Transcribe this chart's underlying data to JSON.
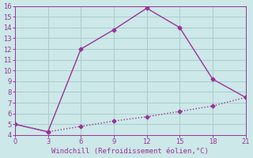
{
  "line1_x": [
    0,
    3,
    6,
    9,
    12,
    15,
    18,
    21
  ],
  "line1_y": [
    5.0,
    4.3,
    12.0,
    13.8,
    15.8,
    14.0,
    9.2,
    7.5
  ],
  "line2_x": [
    0,
    3,
    6,
    9,
    12,
    15,
    18,
    21
  ],
  "line2_y": [
    5.0,
    4.3,
    4.8,
    5.3,
    5.7,
    6.2,
    6.7,
    7.5
  ],
  "line_color": "#993399",
  "background_color": "#cce8e8",
  "grid_color": "#aacccc",
  "xlabel": "Windchill (Refroidissement éolien,°C)",
  "xlabel_color": "#993399",
  "xlim": [
    0,
    21
  ],
  "ylim": [
    4,
    16
  ],
  "xticks": [
    0,
    3,
    6,
    9,
    12,
    15,
    18,
    21
  ],
  "yticks": [
    4,
    5,
    6,
    7,
    8,
    9,
    10,
    11,
    12,
    13,
    14,
    15,
    16
  ],
  "tick_color": "#993399",
  "marker": "D",
  "markersize": 2.5,
  "linewidth": 1.0
}
